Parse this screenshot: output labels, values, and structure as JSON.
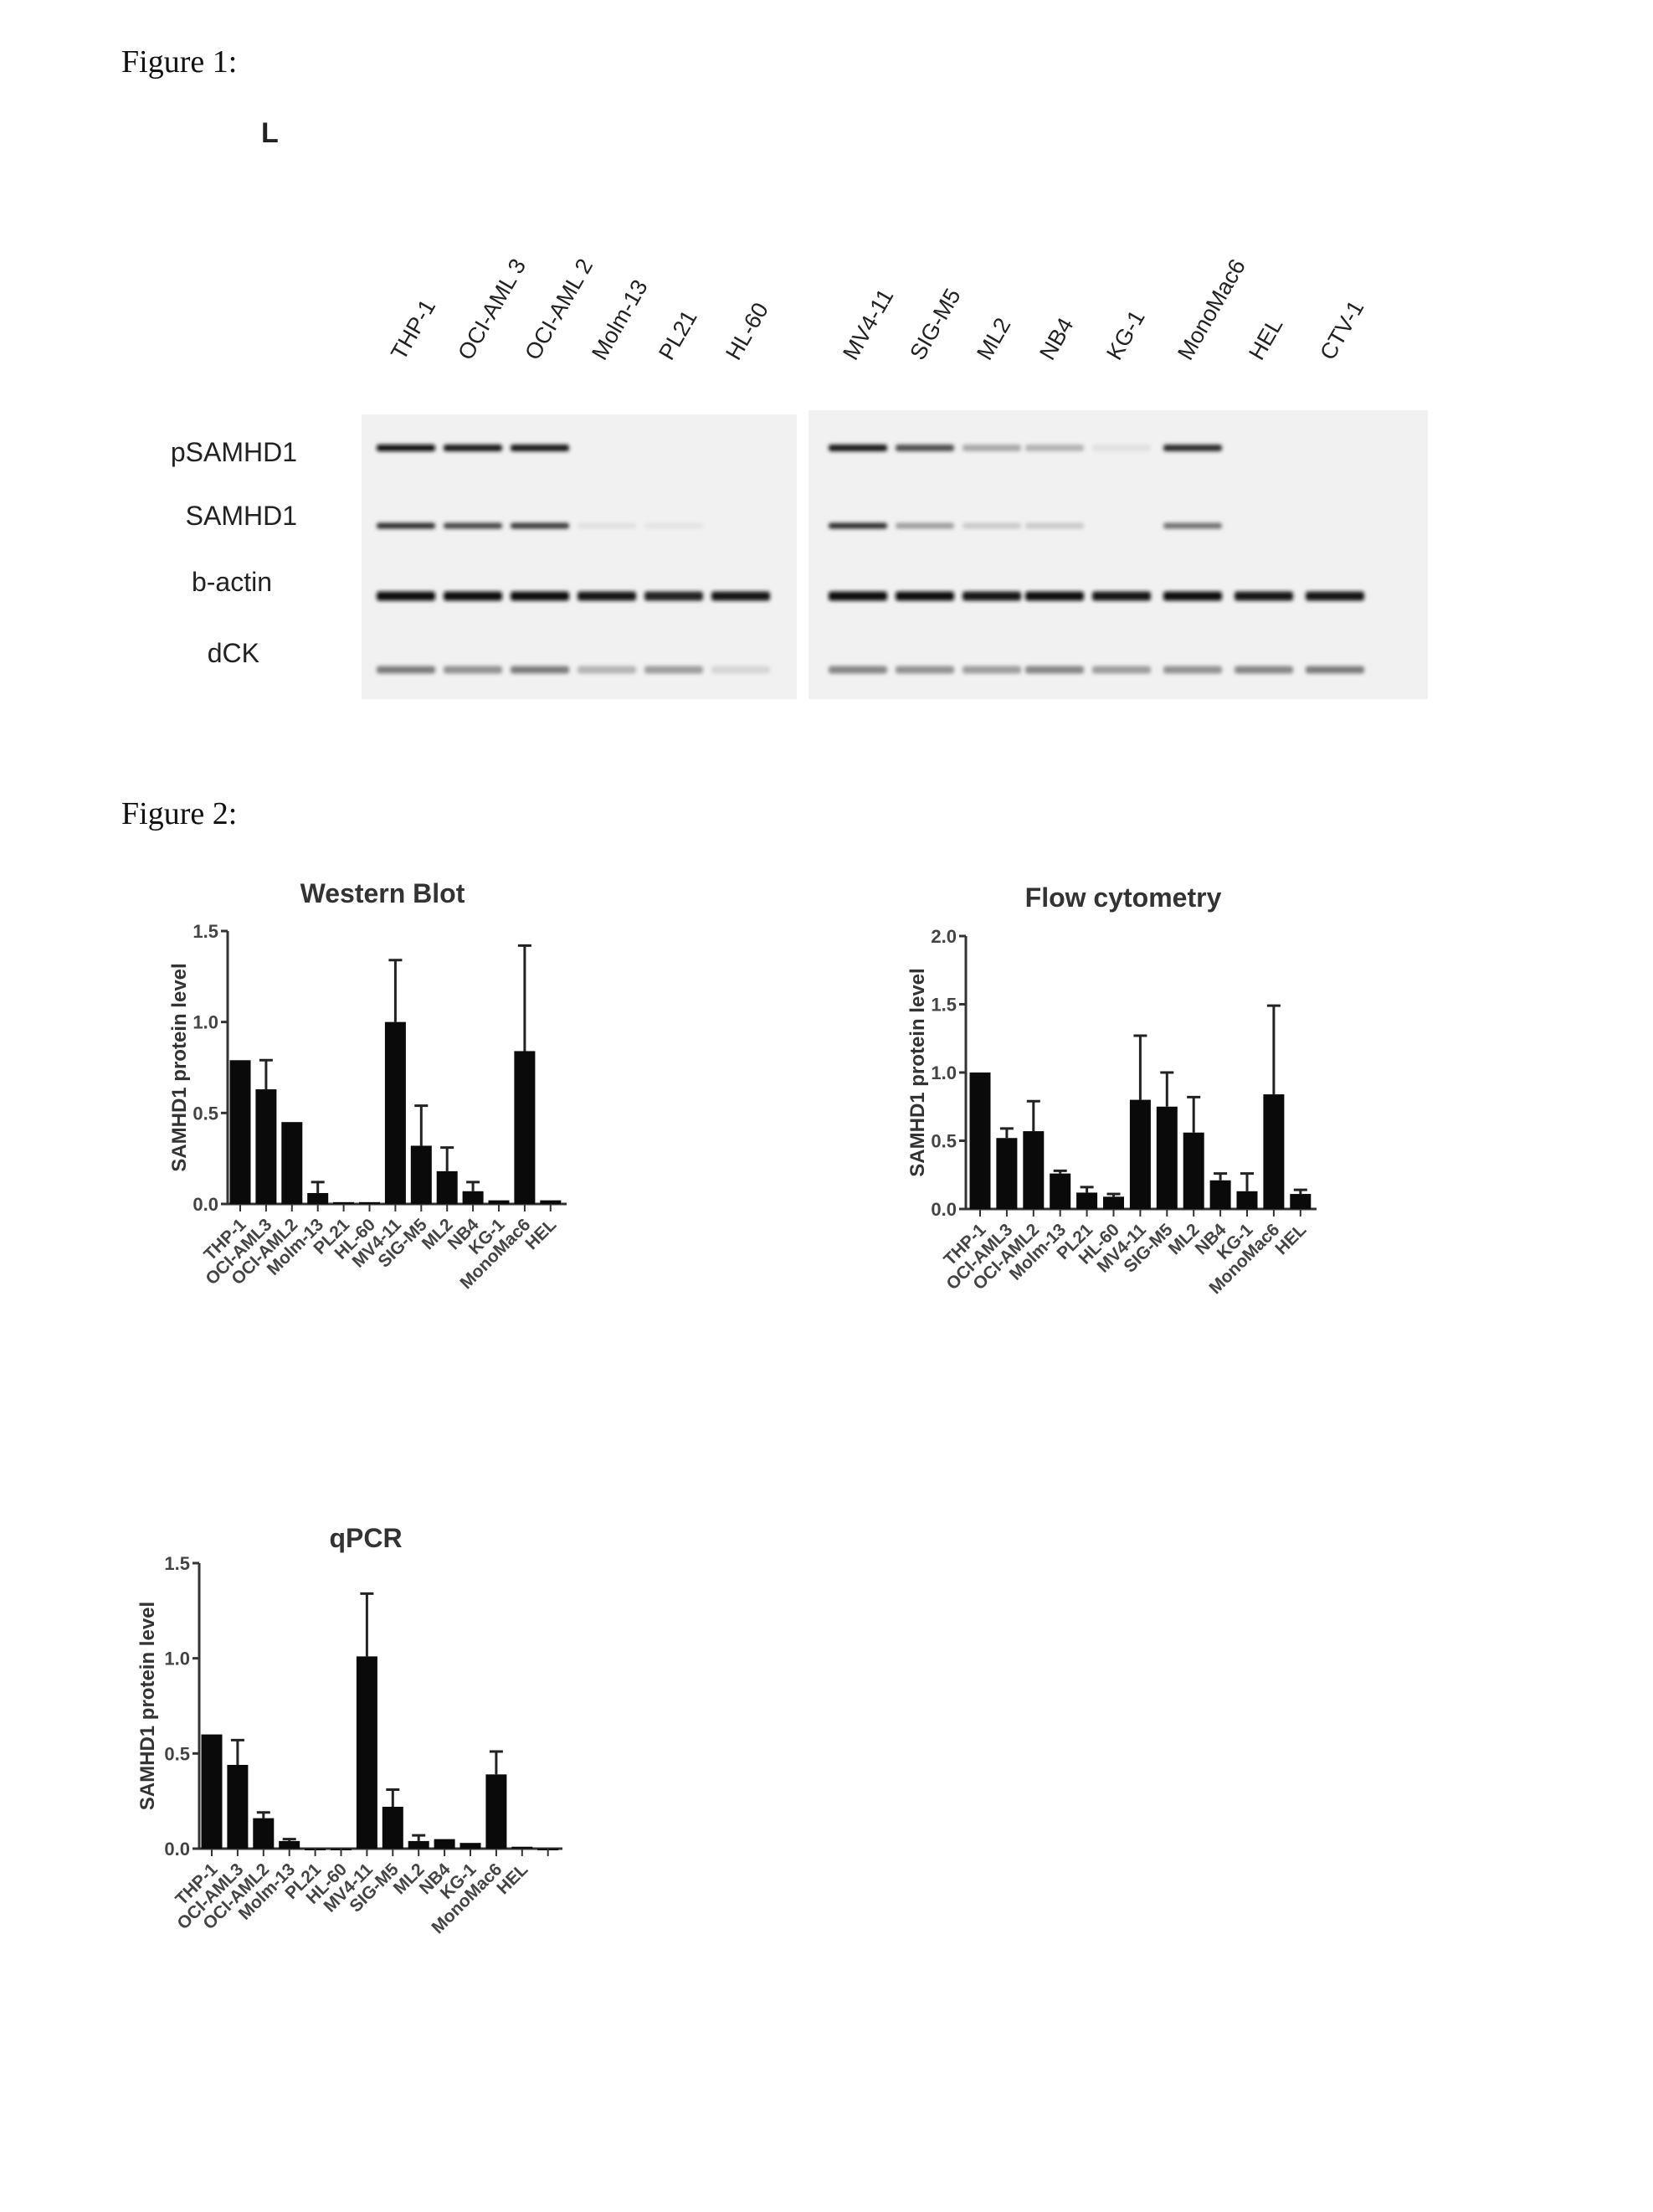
{
  "figure1": {
    "label": "Figure 1:",
    "panel_letter": "L",
    "lanes": [
      "THP-1",
      "OCI-AML 3",
      "OCI-AML 2",
      "Molm-13",
      "PL21",
      "HL-60",
      "MV4-11",
      "SIG-M5",
      "ML2",
      "NB4",
      "KG-1",
      "MonoMac6",
      "HEL",
      "CTV-1"
    ],
    "rows": [
      {
        "label": "pSAMHD1",
        "intensity": [
          1.0,
          0.95,
          0.95,
          0,
          0,
          0,
          0.95,
          0.7,
          0.3,
          0.25,
          0.05,
          0.85,
          0,
          0
        ]
      },
      {
        "label": "SAMHD1",
        "intensity": [
          0.85,
          0.75,
          0.8,
          0.05,
          0.03,
          0,
          0.85,
          0.35,
          0.15,
          0.15,
          0,
          0.55,
          0,
          0
        ]
      },
      {
        "label": "b-actin",
        "intensity": [
          1,
          1,
          1,
          0.95,
          0.9,
          0.95,
          1,
          1,
          0.95,
          1,
          0.95,
          1,
          0.95,
          0.95
        ]
      },
      {
        "label": "dCK",
        "intensity": [
          0.5,
          0.4,
          0.5,
          0.25,
          0.35,
          0.1,
          0.45,
          0.4,
          0.35,
          0.45,
          0.35,
          0.4,
          0.45,
          0.5
        ]
      }
    ]
  },
  "figure2": {
    "label": "Figure 2:"
  },
  "chart_data": [
    {
      "type": "bar",
      "title": "Western Blot",
      "xlabel": "",
      "ylabel": "SAMHD1 protein level",
      "ylim": [
        0,
        1.5
      ],
      "yticks": [
        "0.0",
        "0.5",
        "1.0",
        "1.5"
      ],
      "categories": [
        "THP-1",
        "OCI-AML3",
        "OCI-AML2",
        "Molm-13",
        "PL21",
        "HL-60",
        "MV4-11",
        "SIG-M5",
        "ML2",
        "NB4",
        "KG-1",
        "MonoMac6",
        "HEL"
      ],
      "values": [
        0.79,
        0.63,
        0.45,
        0.06,
        0.01,
        0.01,
        1.0,
        0.32,
        0.18,
        0.07,
        0.02,
        0.84,
        0.02
      ],
      "error_upper": [
        0.79,
        0.79,
        0.45,
        0.12,
        0.01,
        0.01,
        1.34,
        0.54,
        0.31,
        0.12,
        0.02,
        1.42,
        0.02
      ],
      "grid": false
    },
    {
      "type": "bar",
      "title": "Flow cytometry",
      "xlabel": "",
      "ylabel": "SAMHD1 protein level",
      "ylim": [
        0,
        2.0
      ],
      "yticks": [
        "0.0",
        "0.5",
        "1.0",
        "1.5",
        "2.0"
      ],
      "categories": [
        "THP-1",
        "OCI-AML3",
        "OCI-AML2",
        "Molm-13",
        "PL21",
        "HL-60",
        "MV4-11",
        "SIG-M5",
        "ML2",
        "NB4",
        "KG-1",
        "MonoMac6",
        "HEL"
      ],
      "values": [
        1.0,
        0.52,
        0.57,
        0.26,
        0.12,
        0.09,
        0.8,
        0.75,
        0.56,
        0.21,
        0.13,
        0.84,
        0.11
      ],
      "error_upper": [
        1.0,
        0.59,
        0.79,
        0.28,
        0.16,
        0.11,
        1.27,
        1.0,
        0.82,
        0.26,
        0.26,
        1.49,
        0.14
      ],
      "grid": false
    },
    {
      "type": "bar",
      "title": "qPCR",
      "xlabel": "",
      "ylabel": "SAMHD1 protein level",
      "ylim": [
        0,
        1.5
      ],
      "yticks": [
        "0.0",
        "0.5",
        "1.0",
        "1.5"
      ],
      "categories": [
        "THP-1",
        "OCI-AML3",
        "OCI-AML2",
        "Molm-13",
        "PL21",
        "HL-60",
        "MV4-11",
        "SIG-M5",
        "ML2",
        "NB4",
        "KG-1",
        "MonoMac6",
        "HEL",
        ""
      ],
      "values": [
        0.6,
        0.44,
        0.16,
        0.04,
        0.0,
        0.0,
        1.01,
        0.22,
        0.04,
        0.05,
        0.03,
        0.39,
        0.01,
        0.0
      ],
      "error_upper": [
        0.6,
        0.57,
        0.19,
        0.05,
        0.0,
        0.0,
        1.34,
        0.31,
        0.07,
        0.05,
        0.03,
        0.51,
        0.01,
        0.0
      ],
      "grid": false
    }
  ]
}
